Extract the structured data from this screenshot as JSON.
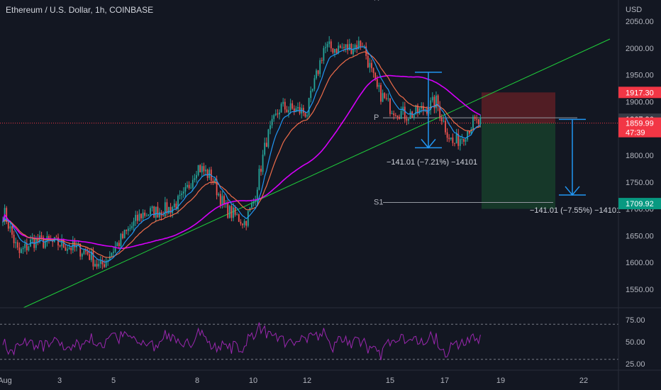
{
  "title": "Ethereum / U.S. Dollar, 1h, COINBASE",
  "header_glyph": "R",
  "currency": "USD",
  "colors": {
    "background": "#131722",
    "up": "#26a69a",
    "down": "#ef5350",
    "ema_fast": "#2196f3",
    "ema_slow": "#ef6c4a",
    "ma_long": "#d500f9",
    "trendline": "#1fcf3b",
    "rsi": "#9c27b0",
    "measure": "#2196f3",
    "stop_zone": "#5d1f25",
    "target_zone": "#173c2a"
  },
  "chart_data": [
    {
      "type": "candlestick",
      "title": "Ethereum / U.S. Dollar, 1h, COINBASE",
      "ylabel": "USD",
      "ylim": [
        1520,
        2060
      ],
      "grid": false,
      "x_ticks": [
        "Aug",
        "3",
        "5",
        "8",
        "10",
        "12",
        "15",
        "17",
        "19",
        "22"
      ],
      "y_ticks": [
        2050,
        2000,
        1950,
        1900,
        1850,
        1800,
        1750,
        1700,
        1650,
        1600,
        1550
      ],
      "y_tick_labels": [
        "2050.00",
        "2000.00",
        "1950.00",
        "1900.00",
        "1850.00",
        "1800.00",
        "1750.00",
        "1700.00",
        "1650.00",
        "1600.00",
        "1550.00"
      ],
      "price_path": [
        {
          "x": "Aug",
          "y": 1690
        },
        {
          "x": "1.5",
          "y": 1615
        },
        {
          "x": "2",
          "y": 1640
        },
        {
          "x": "3",
          "y": 1635
        },
        {
          "x": "4",
          "y": 1620
        },
        {
          "x": "4.5",
          "y": 1590
        },
        {
          "x": "5",
          "y": 1625
        },
        {
          "x": "6",
          "y": 1690
        },
        {
          "x": "7",
          "y": 1700
        },
        {
          "x": "7.5",
          "y": 1720
        },
        {
          "x": "8",
          "y": 1780
        },
        {
          "x": "8.5",
          "y": 1760
        },
        {
          "x": "9",
          "y": 1700
        },
        {
          "x": "9.7",
          "y": 1675
        },
        {
          "x": "10",
          "y": 1710
        },
        {
          "x": "10.5",
          "y": 1830
        },
        {
          "x": "11",
          "y": 1890
        },
        {
          "x": "12",
          "y": 1880
        },
        {
          "x": "12.6",
          "y": 2000
        },
        {
          "x": "13.5",
          "y": 2000
        },
        {
          "x": "14",
          "y": 2010
        },
        {
          "x": "14.5",
          "y": 1925
        },
        {
          "x": "15",
          "y": 1890
        },
        {
          "x": "15.6",
          "y": 1875
        },
        {
          "x": "16",
          "y": 1880
        },
        {
          "x": "16.7",
          "y": 1900
        },
        {
          "x": "17",
          "y": 1855
        },
        {
          "x": "17.3",
          "y": 1820
        },
        {
          "x": "17.7",
          "y": 1840
        },
        {
          "x": "18",
          "y": 1860
        }
      ],
      "levels": {
        "P_label": "P",
        "P": 1870,
        "S1_label": "S1",
        "S1": 1712
      },
      "price_tags": [
        {
          "label": "1917.30",
          "value": 1917.3,
          "color": "#f23645"
        },
        {
          "label": "1867.36",
          "value": 1867.36,
          "color": "#363a45"
        },
        {
          "label": "1859.99",
          "value": 1859.99,
          "color": "#f23645",
          "countdown": "47:39"
        },
        {
          "label": "1709.92",
          "value": 1709.92,
          "color": "#089981"
        }
      ],
      "measurements": [
        {
          "label": "−141.01 (−7.21%) −14101",
          "from": 1955,
          "to": 1814
        },
        {
          "label": "−141.01 (−7.55%) −14101",
          "from": 1867,
          "to": 1726
        }
      ],
      "trade_box": {
        "entry": 1859.99,
        "stop": 1917.3,
        "target": 1709.92
      }
    },
    {
      "type": "line",
      "series": [
        {
          "values_note": "RSI oscillator"
        }
      ],
      "ylim": [
        20,
        85
      ],
      "y_ticks": [
        75,
        50,
        25
      ],
      "y_tick_labels": [
        "75.00",
        "50.00",
        "25.00"
      ],
      "bands": [
        70,
        30
      ]
    }
  ]
}
